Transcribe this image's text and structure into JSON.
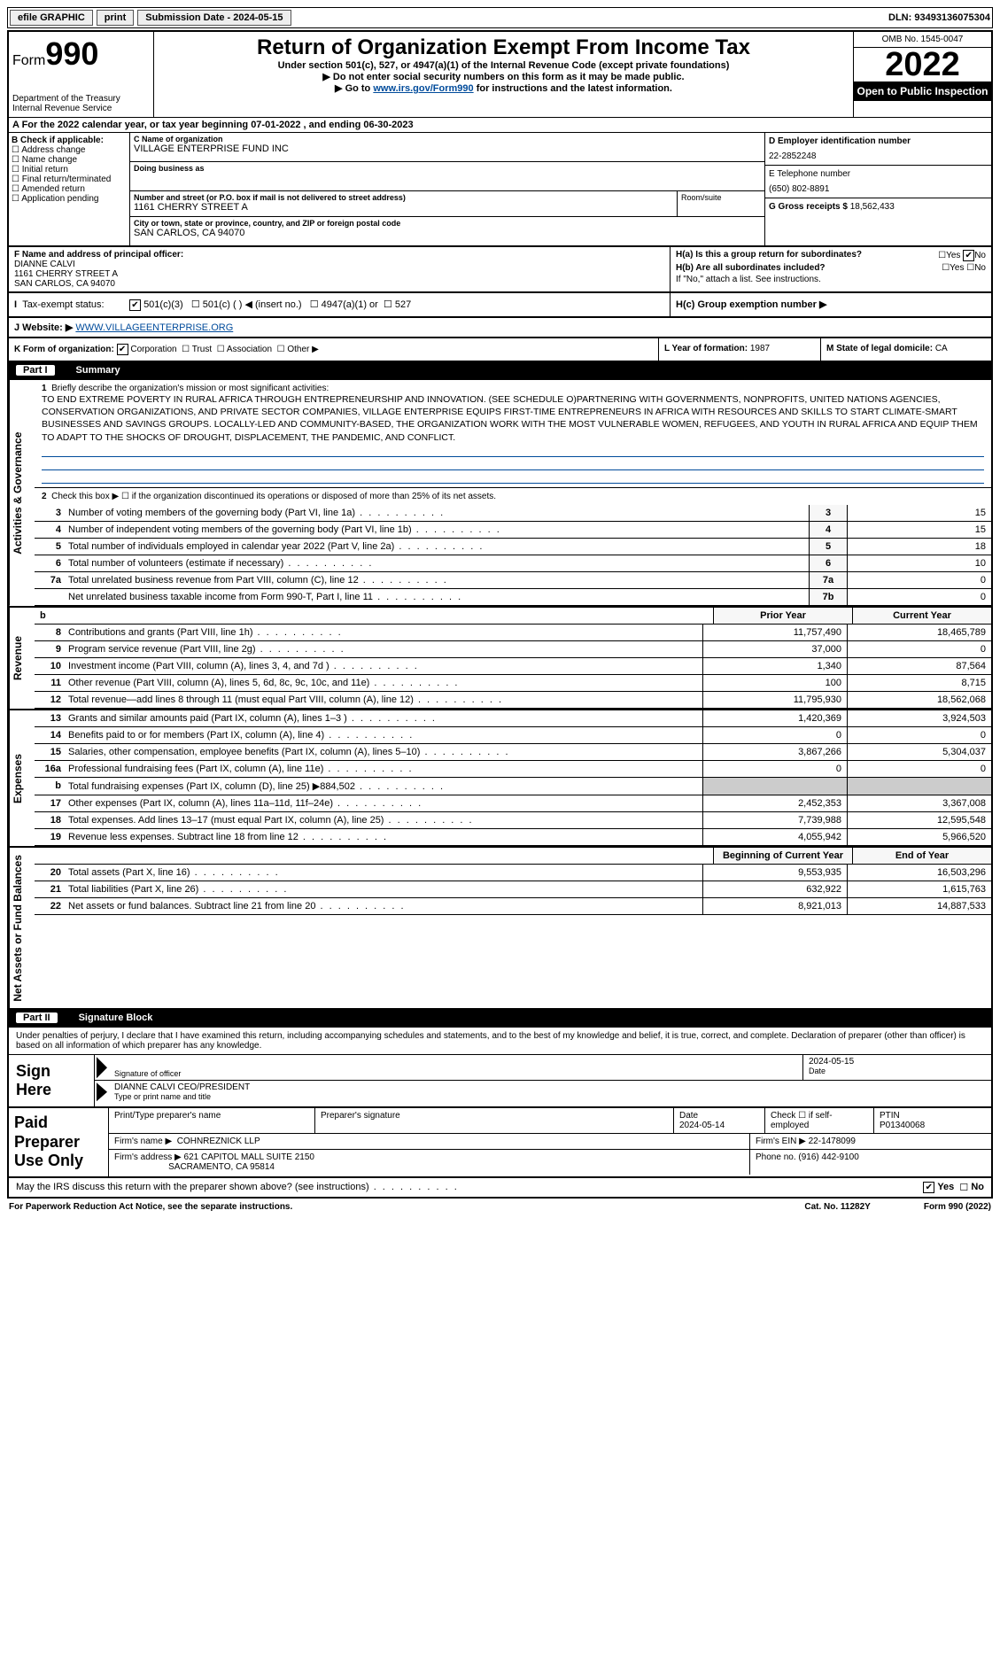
{
  "topbar": {
    "efile": "efile GRAPHIC",
    "print": "print",
    "subdate_lbl": "Submission Date - 2024-05-15",
    "dln": "DLN: 93493136075304"
  },
  "header": {
    "form": "Form",
    "num": "990",
    "dept": "Department of the Treasury",
    "irs": "Internal Revenue Service",
    "title": "Return of Organization Exempt From Income Tax",
    "sub1": "Under section 501(c), 527, or 4947(a)(1) of the Internal Revenue Code (except private foundations)",
    "sub2": "▶ Do not enter social security numbers on this form as it may be made public.",
    "sub3_pre": "▶ Go to ",
    "sub3_link": "www.irs.gov/Form990",
    "sub3_post": " for instructions and the latest information.",
    "omb": "OMB No. 1545-0047",
    "year": "2022",
    "open": "Open to Public Inspection"
  },
  "period": {
    "txt": "A For the 2022 calendar year, or tax year beginning 07-01-2022   , and ending 06-30-2023"
  },
  "entity": {
    "b_lbl": "B Check if applicable:",
    "b_opts": [
      "Address change",
      "Name change",
      "Initial return",
      "Final return/terminated",
      "Amended return",
      "Application pending"
    ],
    "c_lbl": "C Name of organization",
    "c_val": "VILLAGE ENTERPRISE FUND INC",
    "dba_lbl": "Doing business as",
    "dba_val": "",
    "street_lbl": "Number and street (or P.O. box if mail is not delivered to street address)",
    "street_val": "1161 CHERRY STREET A",
    "suite_lbl": "Room/suite",
    "city_lbl": "City or town, state or province, country, and ZIP or foreign postal code",
    "city_val": "SAN CARLOS, CA  94070",
    "d_lbl": "D Employer identification number",
    "d_val": "22-2852248",
    "e_lbl": "E Telephone number",
    "e_val": "(650) 802-8891",
    "g_lbl": "G Gross receipts $",
    "g_val": "18,562,433",
    "f_lbl": "F Name and address of principal officer:",
    "f_name": "DIANNE CALVI",
    "f_addr1": "1161 CHERRY STREET A",
    "f_addr2": "SAN CARLOS, CA  94070",
    "ha": "H(a) Is this a group return for subordinates?",
    "hb": "H(b) Are all subordinates included?",
    "hb_note": "If \"No,\" attach a list. See instructions.",
    "hc": "H(c) Group exemption number ▶",
    "status_lbl": "Tax-exempt status:",
    "status_opts": {
      "c3": "501(c)(3)",
      "c": "501(c) (   ) ◀ (insert no.)",
      "a1": "4947(a)(1) or",
      "527": "527"
    },
    "site_lbl": "J  Website: ▶",
    "site_val": "WWW.VILLAGEENTERPRISE.ORG",
    "k_lbl": "K Form of organization:",
    "k_opts": [
      "Corporation",
      "Trust",
      "Association",
      "Other ▶"
    ],
    "l_lbl": "L Year of formation:",
    "l_val": "1987",
    "m_lbl": "M State of legal domicile:",
    "m_val": "CA"
  },
  "part1": {
    "hdr": "Part I",
    "title": "Summary",
    "vtab_gov": "Activities & Governance",
    "vtab_rev": "Revenue",
    "vtab_exp": "Expenses",
    "vtab_net": "Net Assets or Fund Balances",
    "l1_lbl": "Briefly describe the organization's mission or most significant activities:",
    "l1_txt": "TO END EXTREME POVERTY IN RURAL AFRICA THROUGH ENTREPRENEURSHIP AND INNOVATION. (SEE SCHEDULE O)PARTNERING WITH GOVERNMENTS, NONPROFITS, UNITED NATIONS AGENCIES, CONSERVATION ORGANIZATIONS, AND PRIVATE SECTOR COMPANIES, VILLAGE ENTERPRISE EQUIPS FIRST-TIME ENTREPRENEURS IN AFRICA WITH RESOURCES AND SKILLS TO START CLIMATE-SMART BUSINESSES AND SAVINGS GROUPS. LOCALLY-LED AND COMMUNITY-BASED, THE ORGANIZATION WORK WITH THE MOST VULNERABLE WOMEN, REFUGEES, AND YOUTH IN RURAL AFRICA AND EQUIP THEM TO ADAPT TO THE SHOCKS OF DROUGHT, DISPLACEMENT, THE PANDEMIC, AND CONFLICT.",
    "l2": "Check this box ▶ ☐ if the organization discontinued its operations or disposed of more than 25% of its net assets.",
    "rows_gov": [
      {
        "n": "3",
        "t": "Number of voting members of the governing body (Part VI, line 1a)",
        "b": "3",
        "v": "15"
      },
      {
        "n": "4",
        "t": "Number of independent voting members of the governing body (Part VI, line 1b)",
        "b": "4",
        "v": "15"
      },
      {
        "n": "5",
        "t": "Total number of individuals employed in calendar year 2022 (Part V, line 2a)",
        "b": "5",
        "v": "18"
      },
      {
        "n": "6",
        "t": "Total number of volunteers (estimate if necessary)",
        "b": "6",
        "v": "10"
      },
      {
        "n": "7a",
        "t": "Total unrelated business revenue from Part VIII, column (C), line 12",
        "b": "7a",
        "v": "0"
      },
      {
        "n": "",
        "t": "Net unrelated business taxable income from Form 990-T, Part I, line 11",
        "b": "7b",
        "v": "0"
      }
    ],
    "col_prior": "Prior Year",
    "col_curr": "Current Year",
    "rows_rev": [
      {
        "n": "8",
        "t": "Contributions and grants (Part VIII, line 1h)",
        "p": "11,757,490",
        "c": "18,465,789"
      },
      {
        "n": "9",
        "t": "Program service revenue (Part VIII, line 2g)",
        "p": "37,000",
        "c": "0"
      },
      {
        "n": "10",
        "t": "Investment income (Part VIII, column (A), lines 3, 4, and 7d )",
        "p": "1,340",
        "c": "87,564"
      },
      {
        "n": "11",
        "t": "Other revenue (Part VIII, column (A), lines 5, 6d, 8c, 9c, 10c, and 11e)",
        "p": "100",
        "c": "8,715"
      },
      {
        "n": "12",
        "t": "Total revenue—add lines 8 through 11 (must equal Part VIII, column (A), line 12)",
        "p": "11,795,930",
        "c": "18,562,068"
      }
    ],
    "rows_exp": [
      {
        "n": "13",
        "t": "Grants and similar amounts paid (Part IX, column (A), lines 1–3 )",
        "p": "1,420,369",
        "c": "3,924,503"
      },
      {
        "n": "14",
        "t": "Benefits paid to or for members (Part IX, column (A), line 4)",
        "p": "0",
        "c": "0"
      },
      {
        "n": "15",
        "t": "Salaries, other compensation, employee benefits (Part IX, column (A), lines 5–10)",
        "p": "3,867,266",
        "c": "5,304,037"
      },
      {
        "n": "16a",
        "t": "Professional fundraising fees (Part IX, column (A), line 11e)",
        "p": "0",
        "c": "0"
      },
      {
        "n": "b",
        "t": "Total fundraising expenses (Part IX, column (D), line 25) ▶884,502",
        "p": "",
        "c": "",
        "shade": true
      },
      {
        "n": "17",
        "t": "Other expenses (Part IX, column (A), lines 11a–11d, 11f–24e)",
        "p": "2,452,353",
        "c": "3,367,008"
      },
      {
        "n": "18",
        "t": "Total expenses. Add lines 13–17 (must equal Part IX, column (A), line 25)",
        "p": "7,739,988",
        "c": "12,595,548"
      },
      {
        "n": "19",
        "t": "Revenue less expenses. Subtract line 18 from line 12",
        "p": "4,055,942",
        "c": "5,966,520"
      }
    ],
    "col_beg": "Beginning of Current Year",
    "col_end": "End of Year",
    "rows_net": [
      {
        "n": "20",
        "t": "Total assets (Part X, line 16)",
        "p": "9,553,935",
        "c": "16,503,296"
      },
      {
        "n": "21",
        "t": "Total liabilities (Part X, line 26)",
        "p": "632,922",
        "c": "1,615,763"
      },
      {
        "n": "22",
        "t": "Net assets or fund balances. Subtract line 21 from line 20",
        "p": "8,921,013",
        "c": "14,887,533"
      }
    ]
  },
  "part2": {
    "hdr": "Part II",
    "title": "Signature Block",
    "decl": "Under penalties of perjury, I declare that I have examined this return, including accompanying schedules and statements, and to the best of my knowledge and belief, it is true, correct, and complete. Declaration of preparer (other than officer) is based on all information of which preparer has any knowledge.",
    "sign_here": "Sign Here",
    "sig_officer": "Signature of officer",
    "sig_date": "2024-05-15",
    "date_lbl": "Date",
    "officer_name": "DIANNE CALVI  CEO/PRESIDENT",
    "typed_lbl": "Type or print name and title",
    "paid_lbl": "Paid Preparer Use Only",
    "pp_name_lbl": "Print/Type preparer's name",
    "pp_sig_lbl": "Preparer's signature",
    "pp_date_lbl": "Date",
    "pp_date": "2024-05-14",
    "pp_self_lbl": "Check ☐ if self-employed",
    "ptin_lbl": "PTIN",
    "ptin": "P01340068",
    "firm_name_lbl": "Firm's name   ▶",
    "firm_name": "COHNREZNICK LLP",
    "firm_ein_lbl": "Firm's EIN ▶",
    "firm_ein": "22-1478099",
    "firm_addr_lbl": "Firm's address ▶",
    "firm_addr1": "621 CAPITOL MALL SUITE 2150",
    "firm_addr2": "SACRAMENTO, CA  95814",
    "phone_lbl": "Phone no.",
    "phone": "(916) 442-9100",
    "discuss": "May the IRS discuss this return with the preparer shown above? (see instructions)",
    "yes": "Yes",
    "no": "No"
  },
  "footer": {
    "pra": "For Paperwork Reduction Act Notice, see the separate instructions.",
    "cat": "Cat. No. 11282Y",
    "form": "Form 990 (2022)"
  }
}
